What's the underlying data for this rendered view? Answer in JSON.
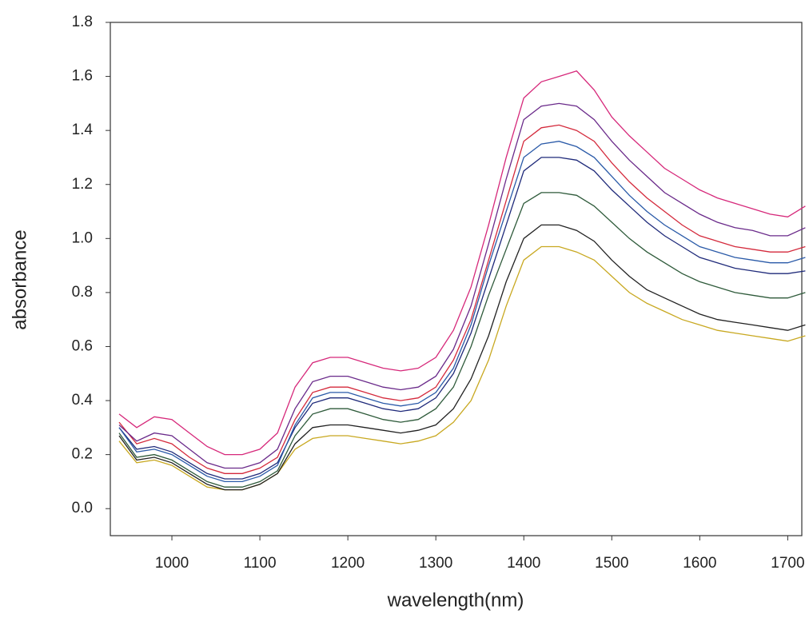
{
  "chart_data": {
    "type": "line",
    "x_label": "wavelength(nm)",
    "y_label": "absorbance",
    "xlim": [
      930,
      1716
    ],
    "ylim": [
      -0.1,
      1.8
    ],
    "xticks": [
      1000,
      1100,
      1200,
      1300,
      1400,
      1500,
      1600,
      1700
    ],
    "yticks": [
      {
        "value": 0,
        "label": "0.0"
      },
      0.2,
      0.4,
      0.6,
      0.8,
      {
        "value": 1,
        "label": "1.0"
      },
      1.2,
      1.4,
      1.6,
      1.8
    ],
    "x": [
      940,
      960,
      980,
      1000,
      1020,
      1040,
      1060,
      1080,
      1100,
      1120,
      1140,
      1160,
      1180,
      1200,
      1220,
      1240,
      1260,
      1280,
      1300,
      1320,
      1340,
      1360,
      1380,
      1400,
      1420,
      1440,
      1460,
      1480,
      1500,
      1520,
      1540,
      1560,
      1580,
      1600,
      1620,
      1640,
      1660,
      1680,
      1700,
      1720
    ],
    "series": [
      {
        "color": "#d6287a",
        "values": [
          0.35,
          0.3,
          0.34,
          0.33,
          0.28,
          0.23,
          0.2,
          0.2,
          0.22,
          0.28,
          0.45,
          0.54,
          0.56,
          0.56,
          0.54,
          0.52,
          0.51,
          0.52,
          0.56,
          0.66,
          0.82,
          1.05,
          1.3,
          1.52,
          1.58,
          1.6,
          1.62,
          1.55,
          1.45,
          1.38,
          1.32,
          1.26,
          1.22,
          1.18,
          1.15,
          1.13,
          1.11,
          1.09,
          1.08,
          1.12
        ]
      },
      {
        "color": "#c8a820",
        "values": [
          0.25,
          0.17,
          0.18,
          0.16,
          0.12,
          0.08,
          0.07,
          0.07,
          0.09,
          0.13,
          0.22,
          0.26,
          0.27,
          0.27,
          0.26,
          0.25,
          0.24,
          0.25,
          0.27,
          0.32,
          0.4,
          0.55,
          0.75,
          0.92,
          0.97,
          0.97,
          0.95,
          0.92,
          0.86,
          0.8,
          0.76,
          0.73,
          0.7,
          0.68,
          0.66,
          0.65,
          0.64,
          0.63,
          0.62,
          0.64
        ]
      },
      {
        "color": "#222222",
        "values": [
          0.27,
          0.18,
          0.19,
          0.17,
          0.13,
          0.09,
          0.07,
          0.07,
          0.09,
          0.13,
          0.24,
          0.3,
          0.31,
          0.31,
          0.3,
          0.29,
          0.28,
          0.29,
          0.31,
          0.37,
          0.48,
          0.64,
          0.84,
          1.0,
          1.05,
          1.05,
          1.03,
          0.99,
          0.92,
          0.86,
          0.81,
          0.78,
          0.75,
          0.72,
          0.7,
          0.69,
          0.68,
          0.67,
          0.66,
          0.68
        ]
      },
      {
        "color": "#2e5a3a",
        "values": [
          0.28,
          0.19,
          0.2,
          0.18,
          0.14,
          0.1,
          0.08,
          0.08,
          0.1,
          0.14,
          0.27,
          0.35,
          0.37,
          0.37,
          0.35,
          0.33,
          0.32,
          0.33,
          0.37,
          0.45,
          0.6,
          0.79,
          0.96,
          1.13,
          1.17,
          1.17,
          1.16,
          1.12,
          1.06,
          1.0,
          0.95,
          0.91,
          0.87,
          0.84,
          0.82,
          0.8,
          0.79,
          0.78,
          0.78,
          0.8
        ]
      },
      {
        "color": "#1f2a7a",
        "values": [
          0.3,
          0.22,
          0.23,
          0.21,
          0.17,
          0.13,
          0.11,
          0.11,
          0.13,
          0.17,
          0.3,
          0.39,
          0.41,
          0.41,
          0.39,
          0.37,
          0.36,
          0.37,
          0.41,
          0.5,
          0.65,
          0.85,
          1.05,
          1.25,
          1.3,
          1.3,
          1.29,
          1.25,
          1.18,
          1.12,
          1.06,
          1.01,
          0.97,
          0.93,
          0.91,
          0.89,
          0.88,
          0.87,
          0.87,
          0.88
        ]
      },
      {
        "color": "#2a5aa8",
        "values": [
          0.3,
          0.21,
          0.22,
          0.2,
          0.16,
          0.12,
          0.1,
          0.1,
          0.12,
          0.16,
          0.31,
          0.41,
          0.43,
          0.43,
          0.41,
          0.39,
          0.38,
          0.39,
          0.43,
          0.52,
          0.68,
          0.9,
          1.1,
          1.3,
          1.35,
          1.36,
          1.34,
          1.3,
          1.23,
          1.16,
          1.1,
          1.05,
          1.01,
          0.97,
          0.95,
          0.93,
          0.92,
          0.91,
          0.91,
          0.93
        ]
      },
      {
        "color": "#d42a3c",
        "values": [
          0.32,
          0.24,
          0.26,
          0.24,
          0.19,
          0.15,
          0.13,
          0.13,
          0.15,
          0.19,
          0.33,
          0.43,
          0.45,
          0.45,
          0.43,
          0.41,
          0.4,
          0.41,
          0.45,
          0.55,
          0.7,
          0.92,
          1.14,
          1.36,
          1.41,
          1.42,
          1.4,
          1.36,
          1.28,
          1.21,
          1.15,
          1.1,
          1.05,
          1.01,
          0.99,
          0.97,
          0.96,
          0.95,
          0.95,
          0.97
        ]
      },
      {
        "color": "#6a2a8a",
        "values": [
          0.31,
          0.25,
          0.28,
          0.27,
          0.22,
          0.17,
          0.15,
          0.15,
          0.17,
          0.22,
          0.37,
          0.47,
          0.49,
          0.49,
          0.47,
          0.45,
          0.44,
          0.45,
          0.49,
          0.59,
          0.75,
          0.98,
          1.22,
          1.44,
          1.49,
          1.5,
          1.49,
          1.44,
          1.36,
          1.29,
          1.23,
          1.17,
          1.13,
          1.09,
          1.06,
          1.04,
          1.03,
          1.01,
          1.01,
          1.04
        ]
      }
    ]
  }
}
